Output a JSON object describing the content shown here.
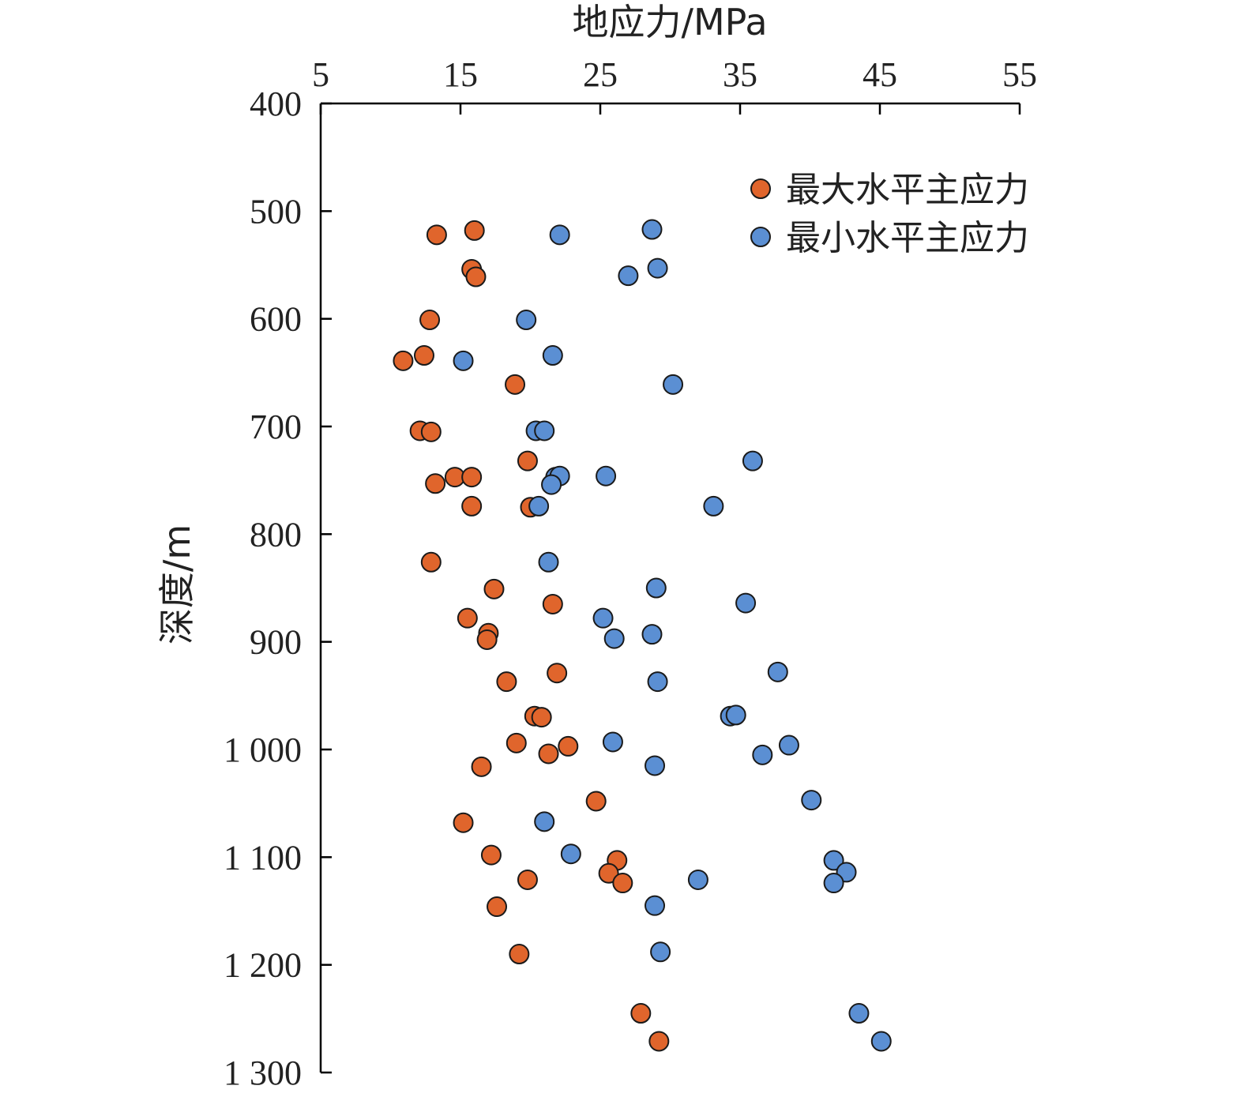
{
  "chart_data": {
    "type": "scatter",
    "xlabel": "地应力/MPa",
    "ylabel": "深度/m",
    "xlim": [
      5,
      55
    ],
    "ylim": [
      400,
      1300
    ],
    "x_ticks": [
      5,
      15,
      25,
      35,
      45,
      55
    ],
    "x_tick_labels": [
      "5",
      "15",
      "25",
      "35",
      "45",
      "55"
    ],
    "y_ticks": [
      400,
      500,
      600,
      700,
      800,
      900,
      1000,
      1100,
      1200,
      1300
    ],
    "y_tick_labels": [
      "400",
      "500",
      "600",
      "700",
      "800",
      "900",
      "1 000",
      "1 100",
      "1 200",
      "1 300"
    ],
    "x_axis_position": "top",
    "y_axis_inverted": true,
    "grid": false,
    "legend_position": "top-right",
    "series": [
      {
        "name": "最大水平主应力",
        "color": "#e0652c",
        "points": [
          [
            13.3,
            522
          ],
          [
            16.0,
            518
          ],
          [
            15.8,
            554
          ],
          [
            16.1,
            561
          ],
          [
            12.8,
            601
          ],
          [
            12.4,
            634
          ],
          [
            10.9,
            639
          ],
          [
            18.9,
            661
          ],
          [
            12.1,
            704
          ],
          [
            12.9,
            705
          ],
          [
            19.8,
            732
          ],
          [
            14.6,
            747
          ],
          [
            15.8,
            747
          ],
          [
            13.2,
            753
          ],
          [
            15.8,
            774
          ],
          [
            20.0,
            775
          ],
          [
            12.9,
            826
          ],
          [
            17.4,
            851
          ],
          [
            21.6,
            865
          ],
          [
            15.5,
            878
          ],
          [
            17.0,
            892
          ],
          [
            16.9,
            898
          ],
          [
            18.3,
            937
          ],
          [
            21.9,
            929
          ],
          [
            20.3,
            969
          ],
          [
            20.8,
            970
          ],
          [
            19.0,
            994
          ],
          [
            22.7,
            997
          ],
          [
            21.3,
            1004
          ],
          [
            16.5,
            1016
          ],
          [
            24.7,
            1048
          ],
          [
            15.2,
            1068
          ],
          [
            17.2,
            1098
          ],
          [
            26.2,
            1103
          ],
          [
            25.6,
            1115
          ],
          [
            26.6,
            1124
          ],
          [
            19.8,
            1121
          ],
          [
            17.6,
            1146
          ],
          [
            19.2,
            1190
          ],
          [
            27.9,
            1245
          ],
          [
            29.2,
            1271
          ]
        ]
      },
      {
        "name": "最小水平主应力",
        "color": "#5b8fd3",
        "points": [
          [
            22.1,
            522
          ],
          [
            28.7,
            517
          ],
          [
            29.1,
            553
          ],
          [
            27.0,
            560
          ],
          [
            19.7,
            601
          ],
          [
            21.6,
            634
          ],
          [
            15.2,
            639
          ],
          [
            30.2,
            661
          ],
          [
            20.4,
            704
          ],
          [
            21.0,
            704
          ],
          [
            35.9,
            732
          ],
          [
            21.8,
            747
          ],
          [
            22.1,
            746
          ],
          [
            25.4,
            746
          ],
          [
            21.5,
            754
          ],
          [
            20.6,
            774
          ],
          [
            33.1,
            774
          ],
          [
            21.3,
            826
          ],
          [
            29.0,
            850
          ],
          [
            35.4,
            864
          ],
          [
            25.2,
            878
          ],
          [
            26.0,
            897
          ],
          [
            28.7,
            893
          ],
          [
            29.1,
            937
          ],
          [
            37.7,
            928
          ],
          [
            34.3,
            969
          ],
          [
            34.7,
            968
          ],
          [
            25.9,
            993
          ],
          [
            38.5,
            996
          ],
          [
            36.6,
            1005
          ],
          [
            28.9,
            1015
          ],
          [
            40.1,
            1047
          ],
          [
            21.0,
            1067
          ],
          [
            22.9,
            1097
          ],
          [
            41.7,
            1103
          ],
          [
            42.6,
            1114
          ],
          [
            41.7,
            1124
          ],
          [
            32.0,
            1121
          ],
          [
            28.9,
            1145
          ],
          [
            29.3,
            1188
          ],
          [
            43.5,
            1245
          ],
          [
            45.1,
            1271
          ]
        ]
      }
    ]
  }
}
